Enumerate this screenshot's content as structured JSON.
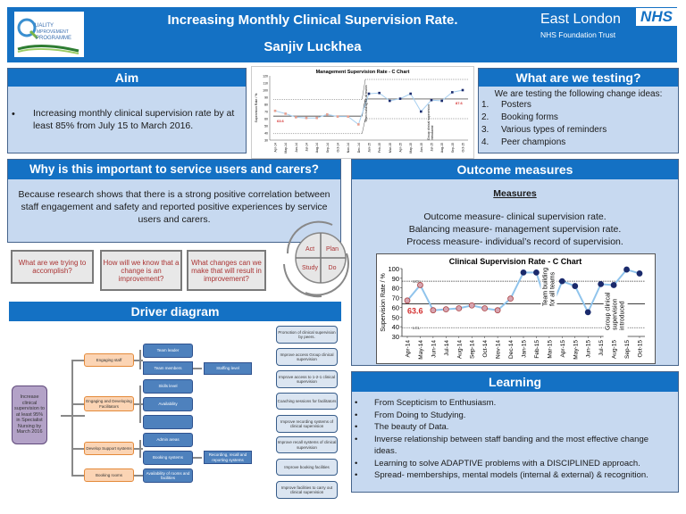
{
  "header": {
    "logo_lines": [
      "UALITY",
      "MPROVEMENT",
      "PROGRAMME"
    ],
    "title": "Increasing Monthly Clinical Supervision Rate.",
    "author": "Sanjiv Luckhea",
    "trust_name": "East London",
    "trust_sub": "NHS Foundation Trust",
    "nhs_badge": "NHS"
  },
  "aim": {
    "heading": "Aim",
    "bullet": "Increasing monthly clinical supervision rate by at least 85% from July 15 to March 2016."
  },
  "testing": {
    "heading": "What are we testing?",
    "intro": "We are testing the following change ideas:",
    "items": [
      "Posters",
      "Booking forms",
      "Various types of reminders",
      "Peer champions"
    ]
  },
  "why": {
    "heading": "Why is this important to service users and carers?",
    "text": "Because research shows that there is a strong positive correlation between staff engagement and safety and reported positive experiences by service users and carers."
  },
  "questions": [
    "What are we trying to accomplish?",
    "How will we know that a change is an improvement?",
    "What changes can we make that will result in improvement?"
  ],
  "pdsa": {
    "act": "Act",
    "plan": "Plan",
    "study": "Study",
    "do": "Do"
  },
  "outcome": {
    "heading": "Outcome measures",
    "subheading": "Measures",
    "lines": [
      "Outcome measure- clinical supervision rate.",
      "Balancing measure- management supervision rate.",
      "Process measure- individual’s record of supervision."
    ]
  },
  "driver": {
    "heading": "Driver diagram",
    "aim_box": "Increase clinical supervision to at least 95% in Specialist Nursing by March 2016",
    "primary": [
      "Engaging staff",
      "Engaging and Developing Facilitators",
      "Develop Support systems",
      "Booking rooms"
    ],
    "secondary": [
      "Team leader",
      "Team members",
      "Skills level",
      "Availability",
      "",
      "Admin areas",
      "Booking systems",
      "Availability of rooms and facilities"
    ],
    "tertiary": [
      "Staffing level",
      "Recording, recall and reporting systems"
    ],
    "change_ideas": [
      "Promotion of clinical supervision by peers.",
      "Improve access Group clinical supervision",
      "Improve access to 1-2-1 clinical supervision",
      "Coaching sessions for facilitators",
      "Improve recording systems of clinical supervision",
      "Improve recall systems of clinical supervision",
      "Improve booking facilities",
      "Improve facilities to carry out clinical supervision"
    ]
  },
  "learning": {
    "heading": "Learning",
    "items": [
      "From Scepticism to Enthusiasm.",
      "From Doing to Studying.",
      "The beauty of Data.",
      "Inverse relationship between staff banding and the most effective change ideas.",
      "Learning to solve ADAPTIVE problems with a DISCIPLINED approach.",
      "Spread- memberships, mental models (internal & external) & recognition."
    ]
  },
  "chart_data": [
    {
      "type": "line",
      "title": "Management Supervision Rate - C Chart",
      "ylabel": "Supervision Rate / %",
      "xlabel": "",
      "ylim": [
        30,
        120
      ],
      "yticks": [
        30,
        40,
        50,
        60,
        70,
        80,
        90,
        100,
        110,
        120
      ],
      "categories": [
        "Apr-14",
        "May-14",
        "Jun-14",
        "Jul-14",
        "Aug-14",
        "Sep-14",
        "Oct-14",
        "Nov-14",
        "Dec-14",
        "Jan-15",
        "Feb-15",
        "Mar-15",
        "Apr-15",
        "May-15",
        "Jun-15",
        "Jul-15",
        "Aug-15",
        "Sep-15",
        "Oct-15"
      ],
      "values": [
        71,
        67,
        62,
        61,
        61,
        66,
        63,
        63,
        52,
        95,
        96,
        85,
        88,
        95,
        70,
        86,
        85,
        97,
        100
      ],
      "mean_labels": [
        "63.6",
        "87.6"
      ],
      "phase1": {
        "mean": 63.6,
        "ucl": 87,
        "lcl": 39
      },
      "phase2": {
        "mean": 87.6,
        "ucl": 115,
        "lcl": 60
      },
      "annotations": [
        "Team building for all teams",
        "Group clinical supervision introduced"
      ]
    },
    {
      "type": "line",
      "title": "Clinical Supervision Rate - C Chart",
      "ylabel": "Supervision Rate / %",
      "xlabel": "",
      "ylim": [
        30,
        100
      ],
      "yticks": [
        30,
        40,
        50,
        60,
        70,
        80,
        90,
        100
      ],
      "categories": [
        "Apr-14",
        "May-14",
        "Jun-14",
        "Jul-14",
        "Aug-14",
        "Sep-14",
        "Oct-14",
        "Nov-14",
        "Dec-14",
        "Jan-15",
        "Feb-15",
        "Mar-15",
        "Apr-15",
        "May-15",
        "Jun-15",
        "Jul-15",
        "Aug-15",
        "Sep-15",
        "Oct-15"
      ],
      "values": [
        67,
        83,
        57,
        58,
        59,
        62,
        59,
        57,
        69,
        96,
        96,
        54,
        87,
        82,
        55,
        84,
        83,
        99,
        95
      ],
      "mean": 63.6,
      "mean_label": "63.6",
      "ucl": 87,
      "lcl": 39,
      "ucl_label": "UCL",
      "lcl_label": "LCL",
      "annotations": [
        "Team building for all teams",
        "Group clinical supervision introduced"
      ]
    }
  ]
}
